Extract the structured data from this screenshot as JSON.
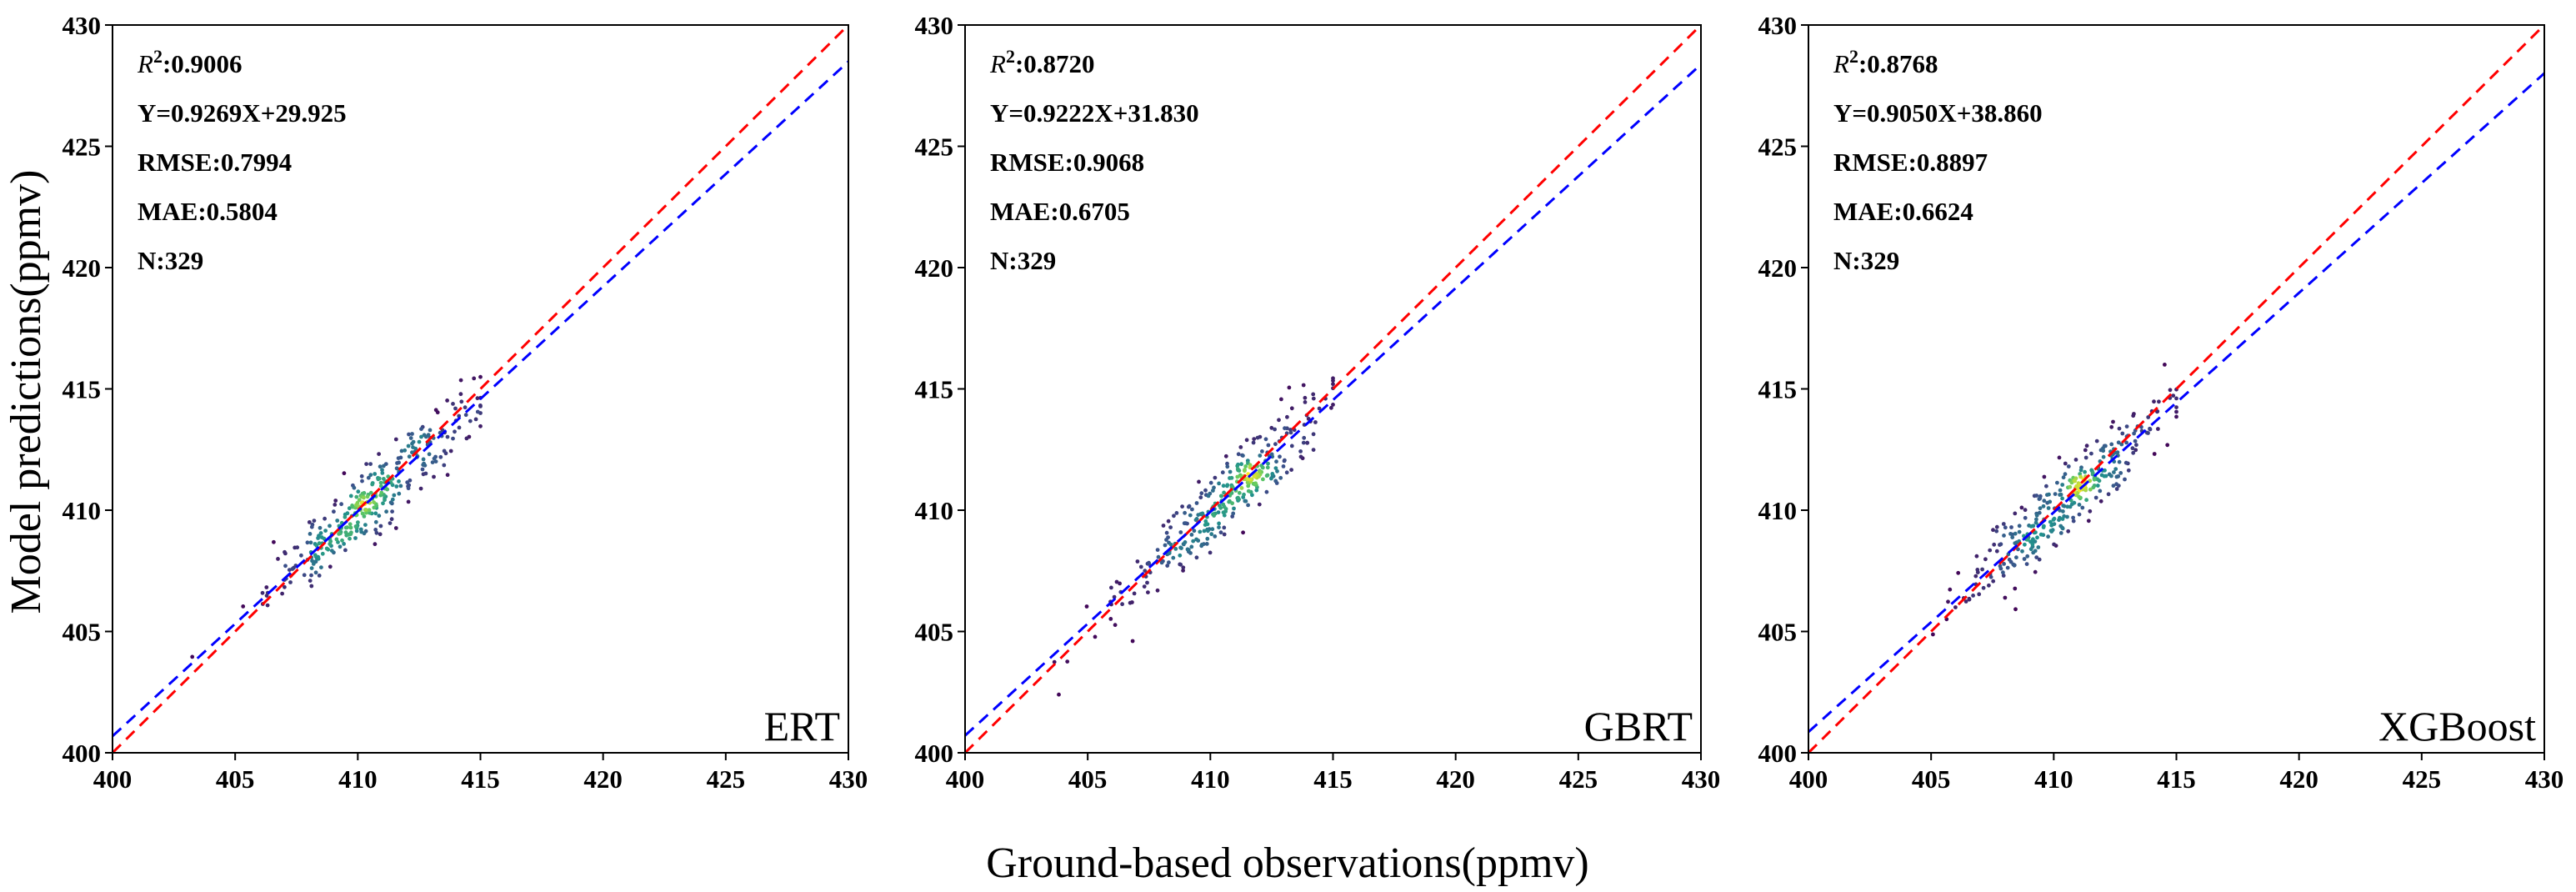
{
  "figure": {
    "ylabel": "Model predictions(ppmv)",
    "xlabel": "Ground-based observations(ppmv)"
  },
  "chart_data": [
    {
      "type": "scatter",
      "model": "ERT",
      "xlim": [
        400,
        430
      ],
      "ylim": [
        400,
        430
      ],
      "xticks": [
        "400",
        "405",
        "410",
        "415",
        "420",
        "425",
        "430"
      ],
      "yticks": [
        "400",
        "405",
        "410",
        "415",
        "420",
        "425",
        "430"
      ],
      "stats": {
        "r2_label": "R",
        "r2_sup": "2",
        "r2_value": ":0.9006",
        "equation": "Y=0.9269X+29.925",
        "rmse": "RMSE:0.7994",
        "mae": "MAE:0.5804",
        "n": "N:329"
      },
      "fit": {
        "slope": 0.9269,
        "intercept": 29.925,
        "color": "#0000ff"
      },
      "identity_line_color": "#ff0000",
      "point_count": 329,
      "point_cloud": {
        "x_center": 410.6,
        "x_spread": 2.1,
        "x_min": 403,
        "x_max": 415,
        "y_noise": 0.7
      }
    },
    {
      "type": "scatter",
      "model": "GBRT",
      "xlim": [
        400,
        430
      ],
      "ylim": [
        400,
        430
      ],
      "xticks": [
        "400",
        "405",
        "410",
        "415",
        "420",
        "425",
        "430"
      ],
      "yticks": [
        "400",
        "405",
        "410",
        "415",
        "420",
        "425",
        "430"
      ],
      "stats": {
        "r2_label": "R",
        "r2_sup": "2",
        "r2_value": ":0.8720",
        "equation": "Y=0.9222X+31.830",
        "rmse": "RMSE:0.9068",
        "mae": "MAE:0.6705",
        "n": "N:329"
      },
      "fit": {
        "slope": 0.9222,
        "intercept": 31.83,
        "color": "#0000ff"
      },
      "identity_line_color": "#ff0000",
      "point_count": 329,
      "point_cloud": {
        "x_center": 410.6,
        "x_spread": 2.1,
        "x_min": 403,
        "x_max": 415,
        "y_noise": 0.8
      }
    },
    {
      "type": "scatter",
      "model": "XGBoost",
      "xlim": [
        400,
        430
      ],
      "ylim": [
        400,
        430
      ],
      "xticks": [
        "400",
        "405",
        "410",
        "415",
        "420",
        "425",
        "430"
      ],
      "yticks": [
        "400",
        "405",
        "410",
        "415",
        "420",
        "425",
        "430"
      ],
      "stats": {
        "r2_label": "R",
        "r2_sup": "2",
        "r2_value": ":0.8768",
        "equation": "Y=0.9050X+38.860",
        "rmse": "RMSE:0.8897",
        "mae": "MAE:0.6624",
        "n": "N:329"
      },
      "fit": {
        "slope": 0.905,
        "intercept": 38.86,
        "color": "#0000ff"
      },
      "identity_line_color": "#ff0000",
      "point_count": 329,
      "point_cloud": {
        "x_center": 410.6,
        "x_spread": 2.1,
        "x_min": 403,
        "x_max": 415,
        "y_noise": 0.78
      }
    }
  ]
}
